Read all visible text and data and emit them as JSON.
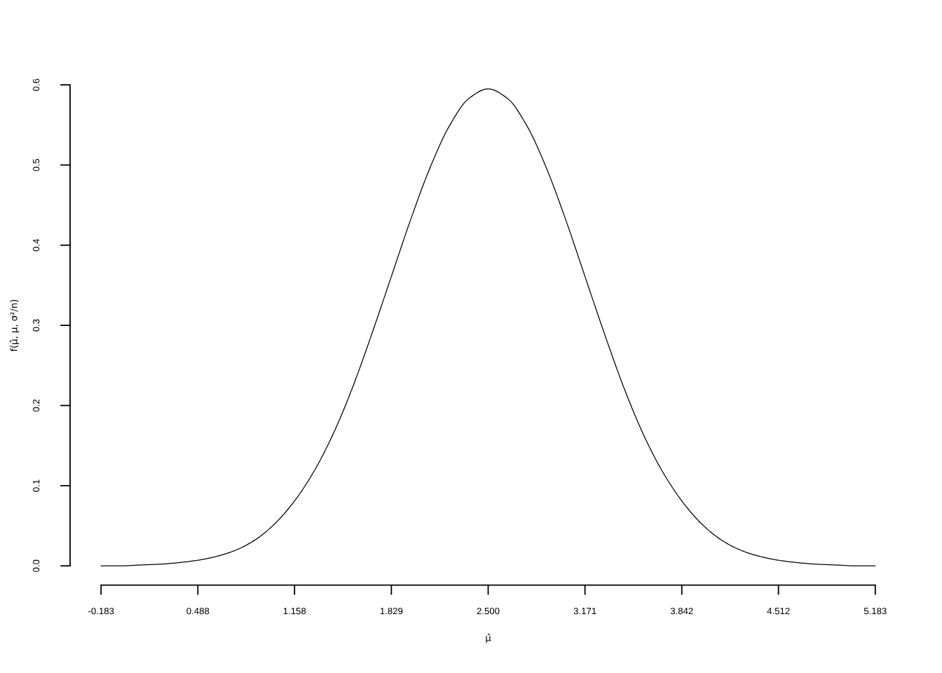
{
  "chart_data": {
    "type": "line",
    "xlabel": "μ̂",
    "ylabel": "f(μ̂, μ, σ²/n)",
    "x": [
      -0.183,
      -0.049,
      0.085,
      0.219,
      0.354,
      0.488,
      0.622,
      0.756,
      0.89,
      1.024,
      1.158,
      1.293,
      1.427,
      1.561,
      1.695,
      1.829,
      1.963,
      2.098,
      2.232,
      2.366,
      2.5,
      2.634,
      2.768,
      2.902,
      3.037,
      3.171,
      3.305,
      3.439,
      3.573,
      3.707,
      3.842,
      3.976,
      4.11,
      4.244,
      4.378,
      4.512,
      4.646,
      4.781,
      4.915,
      5.049,
      5.183
    ],
    "series": [
      {
        "color": "#000000",
        "values": [
          0.0,
          0.0,
          0.001,
          0.002,
          0.004,
          0.007,
          0.012,
          0.02,
          0.033,
          0.053,
          0.081,
          0.118,
          0.165,
          0.223,
          0.29,
          0.361,
          0.432,
          0.497,
          0.549,
          0.583,
          0.595,
          0.583,
          0.549,
          0.497,
          0.432,
          0.361,
          0.29,
          0.223,
          0.165,
          0.118,
          0.081,
          0.053,
          0.033,
          0.02,
          0.012,
          0.007,
          0.004,
          0.002,
          0.001,
          0.0,
          0.0
        ]
      }
    ],
    "xlim": [
      -0.183,
      5.183
    ],
    "ylim": [
      0,
      0.6
    ],
    "xticks": [
      -0.183,
      0.488,
      1.158,
      1.829,
      {
        "value": 2.5,
        "label": "2.500"
      },
      3.171,
      3.842,
      4.512,
      5.183
    ],
    "yticks": [
      {
        "value": 0,
        "label": "0.0"
      },
      0.1,
      0.2,
      0.3,
      0.4,
      0.5,
      0.6
    ],
    "grid": false,
    "marker": "none",
    "line_style": "solid"
  }
}
